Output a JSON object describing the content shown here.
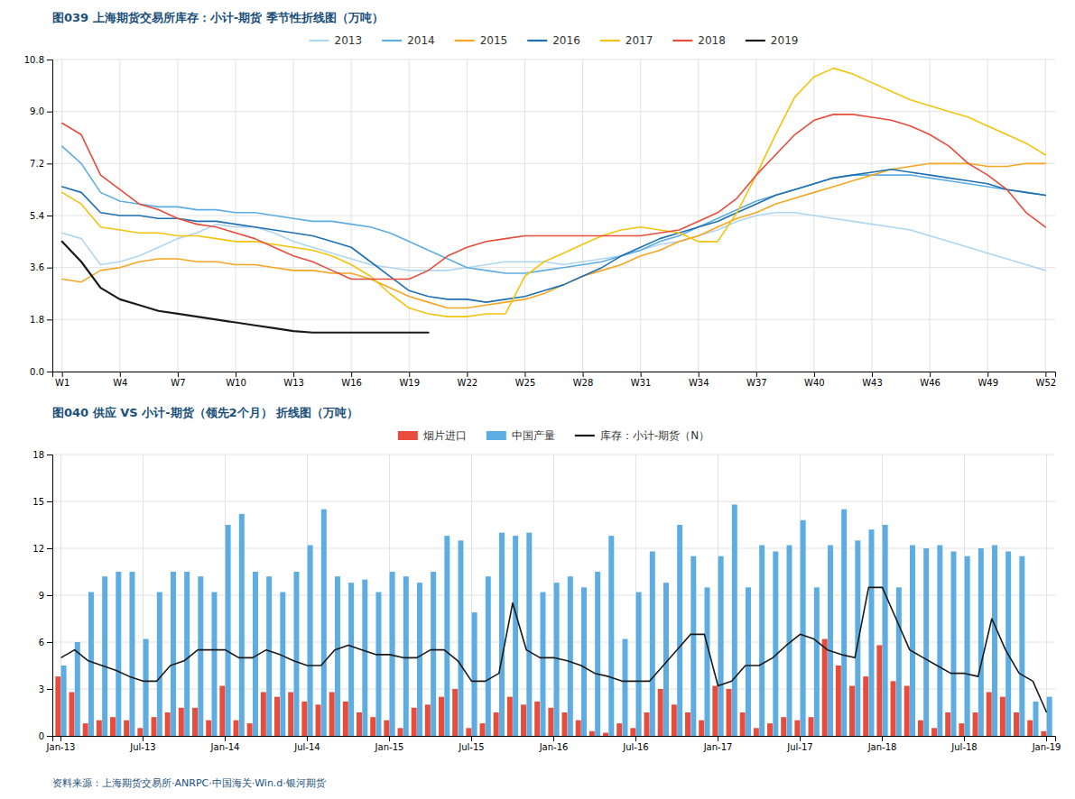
{
  "chart_data": [
    {
      "type": "line",
      "title": "图039 上海期货交易所库存：小计-期货 季节性折线图（万吨）",
      "x": [
        1,
        2,
        3,
        4,
        5,
        6,
        7,
        8,
        9,
        10,
        11,
        12,
        13,
        14,
        15,
        16,
        17,
        18,
        19,
        20,
        21,
        22,
        23,
        24,
        25,
        26,
        27,
        28,
        29,
        30,
        31,
        32,
        33,
        34,
        35,
        36,
        37,
        38,
        39,
        40,
        41,
        42,
        43,
        44,
        45,
        46,
        47,
        48,
        49,
        50,
        51,
        52
      ],
      "xlim": [
        0.5,
        52.5
      ],
      "xticks": [
        {
          "value": 1,
          "label": "W1"
        },
        {
          "value": 4,
          "label": "W4"
        },
        {
          "value": 7,
          "label": "W7"
        },
        {
          "value": 10,
          "label": "W10"
        },
        {
          "value": 13,
          "label": "W13"
        },
        {
          "value": 16,
          "label": "W16"
        },
        {
          "value": 19,
          "label": "W19"
        },
        {
          "value": 22,
          "label": "W22"
        },
        {
          "value": 25,
          "label": "W25"
        },
        {
          "value": 28,
          "label": "W28"
        },
        {
          "value": 31,
          "label": "W31"
        },
        {
          "value": 34,
          "label": "W34"
        },
        {
          "value": 37,
          "label": "W37"
        },
        {
          "value": 40,
          "label": "W40"
        },
        {
          "value": 43,
          "label": "W43"
        },
        {
          "value": 46,
          "label": "W46"
        },
        {
          "value": 49,
          "label": "W49"
        },
        {
          "value": 52,
          "label": "W52"
        }
      ],
      "ylim": [
        0.0,
        10.8
      ],
      "yticks": [
        {
          "value": 0.0,
          "label": "0.0"
        },
        1.8,
        3.6,
        5.4,
        7.2,
        {
          "value": 9.0,
          "label": "9.0"
        },
        10.8
      ],
      "grid": true,
      "legend": "top",
      "series": [
        {
          "name": "2013",
          "color": "#aed6f1",
          "values": [
            4.8,
            4.6,
            3.7,
            3.8,
            4.0,
            4.3,
            4.6,
            4.8,
            5.1,
            5.0,
            5.0,
            4.8,
            4.5,
            4.3,
            4.1,
            3.9,
            3.7,
            3.6,
            3.5,
            3.5,
            3.5,
            3.6,
            3.7,
            3.8,
            3.8,
            3.8,
            3.7,
            3.8,
            3.9,
            4.0,
            4.2,
            4.4,
            4.5,
            4.7,
            4.9,
            5.2,
            5.4,
            5.5,
            5.5,
            5.4,
            5.3,
            5.2,
            5.1,
            5.0,
            4.9,
            4.7,
            4.5,
            4.3,
            4.1,
            3.9,
            3.7,
            3.5
          ]
        },
        {
          "name": "2014",
          "color": "#5dade2",
          "values": [
            7.8,
            7.2,
            6.2,
            5.9,
            5.8,
            5.7,
            5.7,
            5.6,
            5.6,
            5.5,
            5.5,
            5.4,
            5.3,
            5.2,
            5.2,
            5.1,
            5.0,
            4.8,
            4.5,
            4.2,
            3.9,
            3.6,
            3.5,
            3.4,
            3.4,
            3.5,
            3.6,
            3.7,
            3.8,
            4.0,
            4.2,
            4.5,
            4.7,
            5.0,
            5.3,
            5.6,
            5.9,
            6.1,
            6.3,
            6.5,
            6.7,
            6.8,
            6.8,
            6.8,
            6.8,
            6.7,
            6.6,
            6.5,
            6.4,
            6.3,
            6.2,
            6.1
          ]
        },
        {
          "name": "2015",
          "color": "#f5a623",
          "values": [
            3.2,
            3.1,
            3.5,
            3.6,
            3.8,
            3.9,
            3.9,
            3.8,
            3.8,
            3.7,
            3.7,
            3.6,
            3.5,
            3.5,
            3.4,
            3.4,
            3.2,
            2.9,
            2.6,
            2.4,
            2.2,
            2.2,
            2.3,
            2.4,
            2.5,
            2.7,
            3.0,
            3.3,
            3.5,
            3.7,
            4.0,
            4.2,
            4.5,
            4.7,
            5.0,
            5.3,
            5.5,
            5.8,
            6.0,
            6.2,
            6.4,
            6.6,
            6.8,
            7.0,
            7.1,
            7.2,
            7.2,
            7.2,
            7.1,
            7.1,
            7.2,
            7.2
          ]
        },
        {
          "name": "2016",
          "color": "#1f6fb2",
          "values": [
            6.4,
            6.2,
            5.5,
            5.4,
            5.4,
            5.3,
            5.3,
            5.2,
            5.2,
            5.1,
            5.0,
            4.9,
            4.8,
            4.7,
            4.5,
            4.3,
            3.8,
            3.3,
            2.8,
            2.6,
            2.5,
            2.5,
            2.4,
            2.5,
            2.6,
            2.8,
            3.0,
            3.3,
            3.6,
            4.0,
            4.3,
            4.6,
            4.8,
            5.0,
            5.2,
            5.5,
            5.8,
            6.1,
            6.3,
            6.5,
            6.7,
            6.8,
            6.9,
            7.0,
            6.9,
            6.8,
            6.7,
            6.6,
            6.5,
            6.3,
            6.2,
            6.1
          ]
        },
        {
          "name": "2017",
          "color": "#f1c40f",
          "values": [
            6.2,
            5.8,
            5.0,
            4.9,
            4.8,
            4.8,
            4.7,
            4.7,
            4.6,
            4.5,
            4.5,
            4.4,
            4.3,
            4.2,
            4.0,
            3.7,
            3.3,
            2.7,
            2.2,
            2.0,
            1.9,
            1.9,
            2.0,
            2.0,
            3.3,
            3.8,
            4.1,
            4.4,
            4.7,
            4.9,
            5.0,
            4.9,
            4.8,
            4.5,
            4.5,
            5.5,
            6.8,
            8.2,
            9.5,
            10.2,
            10.5,
            10.3,
            10.0,
            9.7,
            9.4,
            9.2,
            9.0,
            8.8,
            8.5,
            8.2,
            7.9,
            7.5
          ]
        },
        {
          "name": "2018",
          "color": "#e74c3c",
          "values": [
            8.6,
            8.2,
            6.8,
            6.3,
            5.8,
            5.6,
            5.3,
            5.1,
            5.0,
            4.8,
            4.6,
            4.3,
            4.0,
            3.8,
            3.5,
            3.2,
            3.2,
            3.2,
            3.2,
            3.5,
            4.0,
            4.3,
            4.5,
            4.6,
            4.7,
            4.7,
            4.7,
            4.7,
            4.7,
            4.7,
            4.7,
            4.8,
            4.9,
            5.2,
            5.5,
            6.0,
            6.8,
            7.5,
            8.2,
            8.7,
            8.9,
            8.9,
            8.8,
            8.7,
            8.5,
            8.2,
            7.8,
            7.2,
            6.8,
            6.3,
            5.5,
            5.0
          ]
        },
        {
          "name": "2019",
          "color": "#1a1a1a",
          "values": [
            4.5,
            3.8,
            2.9,
            2.5,
            2.3,
            2.1,
            2.0,
            1.9,
            1.8,
            1.7,
            1.6,
            1.5,
            1.4,
            1.35,
            1.35,
            1.35,
            1.35,
            1.35,
            1.35,
            1.35,
            null,
            null,
            null,
            null,
            null,
            null,
            null,
            null,
            null,
            null,
            null,
            null,
            null,
            null,
            null,
            null,
            null,
            null,
            null,
            null,
            null,
            null,
            null,
            null,
            null,
            null,
            null,
            null,
            null,
            null,
            null,
            null
          ]
        }
      ]
    },
    {
      "type": "bar",
      "title": "图040 供应 VS 小计-期货（领先2个月） 折线图（万吨）",
      "categories": [
        "Jan-13",
        null,
        null,
        null,
        null,
        null,
        "Jul-13",
        null,
        null,
        null,
        null,
        null,
        "Jan-14",
        null,
        null,
        null,
        null,
        null,
        "Jul-14",
        null,
        null,
        null,
        null,
        null,
        "Jan-15",
        null,
        null,
        null,
        null,
        null,
        "Jul-15",
        null,
        null,
        null,
        null,
        null,
        "Jan-16",
        null,
        null,
        null,
        null,
        null,
        "Jul-16",
        null,
        null,
        null,
        null,
        null,
        "Jan-17",
        null,
        null,
        null,
        null,
        null,
        "Jul-17",
        null,
        null,
        null,
        null,
        null,
        "Jan-18",
        null,
        null,
        null,
        null,
        null,
        "Jul-18",
        null,
        null,
        null,
        null,
        null,
        "Jan-19"
      ],
      "ylim": [
        0,
        18
      ],
      "yticks": [
        0,
        3,
        6,
        9,
        12,
        15,
        18
      ],
      "grid": true,
      "legend": "top",
      "annotations": [
        "资料来源：上海期货交易所·ANRPC·中国海关·Win.d·银河期货"
      ],
      "series": [
        {
          "name": "烟片进口",
          "type": "bar",
          "color": "#e74c3c",
          "values": [
            3.8,
            2.8,
            0.8,
            1.0,
            1.2,
            1.0,
            0.5,
            1.2,
            1.5,
            1.8,
            1.8,
            1.0,
            3.2,
            1.0,
            0.8,
            2.8,
            2.5,
            2.8,
            2.2,
            2.0,
            2.8,
            2.2,
            1.5,
            1.2,
            1.0,
            0.5,
            1.8,
            2.0,
            2.5,
            3.0,
            0.5,
            0.8,
            1.5,
            2.5,
            2.0,
            2.2,
            1.8,
            1.5,
            1.0,
            0.3,
            0.2,
            0.8,
            0.5,
            1.5,
            3.0,
            2.0,
            1.5,
            1.0,
            3.2,
            3.0,
            1.5,
            0.5,
            0.8,
            1.2,
            1.0,
            1.2,
            6.2,
            4.5,
            3.2,
            3.8,
            5.8,
            3.5,
            3.2,
            1.0,
            0.5,
            1.5,
            0.8,
            1.5,
            2.8,
            2.5,
            1.5,
            1.0,
            0.3
          ]
        },
        {
          "name": "中国产量",
          "type": "bar",
          "color": "#5dade2",
          "values": [
            4.5,
            6.0,
            9.2,
            10.2,
            10.5,
            10.5,
            6.2,
            9.2,
            10.5,
            10.5,
            10.2,
            9.2,
            13.5,
            14.2,
            10.5,
            10.2,
            9.2,
            10.5,
            12.2,
            14.5,
            10.2,
            9.8,
            10.0,
            9.2,
            10.5,
            10.2,
            9.8,
            10.5,
            12.8,
            12.5,
            7.9,
            10.2,
            13.0,
            12.8,
            13.0,
            9.2,
            9.8,
            10.2,
            9.5,
            10.5,
            12.8,
            6.2,
            9.2,
            11.8,
            9.8,
            13.5,
            11.5,
            9.5,
            11.5,
            14.8,
            9.5,
            12.2,
            11.8,
            12.2,
            13.8,
            9.5,
            12.2,
            14.5,
            12.5,
            13.2,
            13.5,
            9.5,
            12.2,
            12.0,
            12.2,
            11.8,
            11.5,
            12.0,
            12.2,
            11.8,
            11.5,
            2.2,
            2.5
          ]
        },
        {
          "name": "库存：小计-期货（N）",
          "type": "line",
          "color": "#1a1a1a",
          "values": [
            5.0,
            5.5,
            4.8,
            4.5,
            4.2,
            3.8,
            3.5,
            3.5,
            4.5,
            4.8,
            5.5,
            5.5,
            5.5,
            5.0,
            5.0,
            5.5,
            5.2,
            4.8,
            4.5,
            4.5,
            5.5,
            5.8,
            5.5,
            5.2,
            5.2,
            5.0,
            5.0,
            5.5,
            5.5,
            4.8,
            3.5,
            3.5,
            4.0,
            8.5,
            5.5,
            5.0,
            5.0,
            4.8,
            4.5,
            4.0,
            3.8,
            3.5,
            3.5,
            3.5,
            4.5,
            5.5,
            6.5,
            6.5,
            3.2,
            3.5,
            4.5,
            4.5,
            5.0,
            5.8,
            6.5,
            6.2,
            5.5,
            5.2,
            5.0,
            9.5,
            9.5,
            7.5,
            5.5,
            5.0,
            4.5,
            4.0,
            4.0,
            3.8,
            7.5,
            5.5,
            4.0,
            3.5,
            1.5
          ]
        }
      ]
    }
  ]
}
